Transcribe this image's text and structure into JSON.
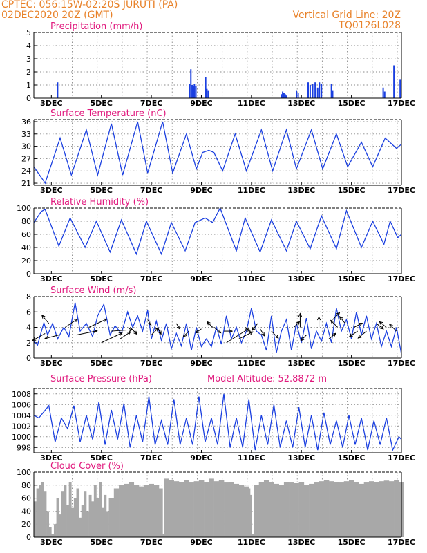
{
  "header": {
    "station": "CPTEC:   056:15W-02:20S   JURUTI (PA)",
    "datetime": "02DEC2020 20Z (GMT)",
    "grid_line": "Vertical Grid Line: 20Z",
    "code": "TQ0126L028"
  },
  "colors": {
    "header": "#e8822a",
    "title": "#e0197d",
    "series": "#1a3fe0",
    "cloud": "#a8a8a8",
    "grid": "#8a8a8a"
  },
  "chart_data": [
    {
      "id": "precip",
      "type": "bar",
      "title": "Precipitation (mm/h)",
      "xlim": [
        2.3,
        17.0
      ],
      "ylim": [
        0,
        5
      ],
      "y_ticks": [
        "0",
        "1",
        "2",
        "3",
        "4",
        "5"
      ],
      "x_ticks": [
        "3DEC",
        "5DEC",
        "7DEC",
        "9DEC",
        "11DEC",
        "13DEC",
        "15DEC",
        "17DEC"
      ],
      "x": [
        3.25,
        8.52,
        8.58,
        8.63,
        8.67,
        8.72,
        8.78,
        9.17,
        9.22,
        9.28,
        12.2,
        12.25,
        12.3,
        12.35,
        12.4,
        12.8,
        12.87,
        13.27,
        13.35,
        13.45,
        13.55,
        13.65,
        13.72,
        13.8,
        14.2,
        14.25,
        16.27,
        16.33,
        16.7,
        16.95,
        16.98
      ],
      "values": [
        1.2,
        1.1,
        2.2,
        1.0,
        0.9,
        1.1,
        0.9,
        1.6,
        0.7,
        0.6,
        0.3,
        0.5,
        0.4,
        0.3,
        0.2,
        0.6,
        0.4,
        1.2,
        1.0,
        1.1,
        1.2,
        0.8,
        1.2,
        1.1,
        1.1,
        0.6,
        0.8,
        0.5,
        2.5,
        1.4,
        0.9
      ]
    },
    {
      "id": "temp",
      "type": "line",
      "title": "Surface Temperature (nC)",
      "xlim": [
        2.3,
        17.0
      ],
      "ylim": [
        20.5,
        36.5
      ],
      "y_ticks": [
        "21",
        "24",
        "27",
        "30",
        "33",
        "36"
      ],
      "x_ticks": [
        "3DEC",
        "5DEC",
        "7DEC",
        "9DEC",
        "11DEC",
        "13DEC",
        "15DEC",
        "17DEC"
      ],
      "x": [
        2.3,
        2.7,
        2.75,
        3.35,
        3.8,
        4.4,
        4.85,
        5.4,
        5.85,
        6.45,
        6.85,
        7.45,
        7.85,
        8.4,
        8.8,
        9.05,
        9.3,
        9.5,
        9.85,
        10.35,
        10.8,
        11.4,
        11.85,
        12.4,
        12.8,
        13.4,
        13.85,
        14.4,
        14.85,
        15.4,
        15.85,
        16.35,
        16.8,
        17.0
      ],
      "values": [
        25,
        21.5,
        21,
        32,
        23,
        34,
        23,
        35.5,
        23,
        36,
        23.5,
        36,
        23.5,
        33,
        24.5,
        28.5,
        29,
        28.5,
        24,
        33,
        24,
        34,
        24,
        34,
        24.5,
        34,
        24.5,
        33,
        25,
        31,
        25,
        32,
        29.5,
        30.5
      ]
    },
    {
      "id": "rh",
      "type": "line",
      "title": "Relative Humidity (%)",
      "xlim": [
        2.3,
        17.0
      ],
      "ylim": [
        0,
        100
      ],
      "y_ticks": [
        "0",
        "20",
        "40",
        "60",
        "80",
        "100"
      ],
      "x_ticks": [
        "3DEC",
        "5DEC",
        "7DEC",
        "9DEC",
        "11DEC",
        "13DEC",
        "15DEC",
        "17DEC"
      ],
      "x": [
        2.3,
        2.6,
        2.75,
        3.3,
        3.75,
        4.35,
        4.8,
        5.35,
        5.8,
        6.4,
        6.8,
        7.4,
        7.8,
        8.35,
        8.75,
        9.15,
        9.45,
        9.75,
        10.4,
        10.75,
        11.35,
        11.8,
        12.4,
        12.8,
        13.35,
        13.8,
        14.4,
        14.8,
        15.4,
        15.85,
        16.3,
        16.55,
        16.85,
        17.0
      ],
      "values": [
        78,
        95,
        98,
        42,
        85,
        40,
        80,
        33,
        82,
        30,
        80,
        30,
        78,
        35,
        78,
        85,
        78,
        100,
        35,
        85,
        33,
        82,
        35,
        80,
        38,
        88,
        38,
        96,
        40,
        80,
        45,
        80,
        55,
        60
      ]
    },
    {
      "id": "wind",
      "type": "line",
      "title": "Surface Wind (m/s)",
      "xlim": [
        2.3,
        17.0
      ],
      "ylim": [
        0,
        8
      ],
      "y_ticks": [
        "0",
        "2",
        "4",
        "6",
        "8"
      ],
      "x_ticks": [
        "3DEC",
        "5DEC",
        "7DEC",
        "9DEC",
        "11DEC",
        "13DEC",
        "15DEC",
        "17DEC"
      ],
      "x": [
        2.3,
        2.45,
        2.7,
        2.85,
        3.05,
        3.25,
        3.5,
        3.7,
        3.95,
        4.15,
        4.4,
        4.65,
        4.85,
        5.1,
        5.35,
        5.55,
        5.8,
        6.05,
        6.25,
        6.45,
        6.65,
        6.85,
        7.0,
        7.2,
        7.4,
        7.6,
        7.8,
        8.0,
        8.2,
        8.4,
        8.6,
        8.8,
        9.0,
        9.2,
        9.4,
        9.6,
        9.8,
        10.0,
        10.2,
        10.4,
        10.6,
        10.8,
        11.0,
        11.2,
        11.4,
        11.6,
        11.8,
        12.0,
        12.2,
        12.4,
        12.6,
        12.8,
        13.0,
        13.2,
        13.4,
        13.6,
        13.8,
        14.0,
        14.2,
        14.4,
        14.6,
        14.8,
        15.0,
        15.2,
        15.4,
        15.6,
        15.8,
        16.0,
        16.2,
        16.4,
        16.6,
        16.8,
        17.0
      ],
      "values": [
        2.2,
        1.7,
        4.6,
        3.0,
        4.5,
        2.5,
        4.0,
        2.8,
        7.2,
        3.5,
        4.5,
        2.8,
        5.5,
        7.0,
        3.0,
        4.2,
        3.2,
        6.0,
        4.0,
        5.5,
        3.5,
        6.2,
        2.5,
        4.8,
        2.3,
        4.5,
        1.2,
        3.2,
        1.6,
        4.5,
        1.0,
        4.0,
        1.5,
        2.5,
        1.5,
        4.0,
        1.8,
        5.5,
        2.5,
        4.0,
        2.0,
        3.5,
        6.5,
        3.5,
        3.0,
        1.0,
        5.5,
        0.7,
        3.5,
        5.0,
        1.0,
        4.5,
        2.0,
        5.2,
        1.2,
        3.5,
        2.2,
        4.5,
        2.0,
        6.5,
        3.5,
        5.0,
        2.5,
        6.0,
        3.0,
        5.5,
        2.5,
        4.5,
        1.5,
        3.5,
        1.5,
        4.0,
        0.5
      ]
    },
    {
      "id": "pressure",
      "type": "line",
      "title": "Surface Pressure (hPa)",
      "annotation": "Model Altitude: 52.8872 m",
      "xlim": [
        2.3,
        17.0
      ],
      "ylim": [
        997,
        1009
      ],
      "y_ticks": [
        "998",
        "1000",
        "1002",
        "1004",
        "1006",
        "1008"
      ],
      "x_ticks": [
        "3DEC",
        "5DEC",
        "7DEC",
        "9DEC",
        "11DEC",
        "13DEC",
        "15DEC",
        "17DEC"
      ],
      "x": [
        2.3,
        2.5,
        2.9,
        3.15,
        3.4,
        3.65,
        3.9,
        4.15,
        4.4,
        4.65,
        4.9,
        5.15,
        5.4,
        5.65,
        5.9,
        6.15,
        6.4,
        6.65,
        6.9,
        7.15,
        7.4,
        7.65,
        7.9,
        8.15,
        8.4,
        8.65,
        8.9,
        9.15,
        9.4,
        9.65,
        9.9,
        10.15,
        10.4,
        10.65,
        10.9,
        11.15,
        11.4,
        11.65,
        11.9,
        12.15,
        12.4,
        12.65,
        12.9,
        13.15,
        13.4,
        13.65,
        13.9,
        14.15,
        14.4,
        14.65,
        14.9,
        15.15,
        15.4,
        15.65,
        15.9,
        16.15,
        16.4,
        16.65,
        16.9,
        17.0
      ],
      "values": [
        1004.0,
        1003.5,
        1005.8,
        999.0,
        1003.5,
        1001.5,
        1005.8,
        999.0,
        1004.0,
        999.5,
        1006.5,
        998.5,
        1005.0,
        999.5,
        1006.2,
        998.0,
        1004.0,
        999.0,
        1007.5,
        998.5,
        1003.0,
        998.5,
        1007.0,
        998.5,
        1003.5,
        998.5,
        1007.5,
        999.0,
        1003.5,
        998.5,
        1008.0,
        998.0,
        1003.5,
        998.0,
        1007.0,
        997.5,
        1004.0,
        998.5,
        1006.0,
        998.0,
        1003.0,
        998.0,
        1005.5,
        998.0,
        1004.0,
        997.5,
        1004.5,
        998.5,
        1003.0,
        998.0,
        1004.0,
        998.5,
        1003.5,
        997.5,
        1003.0,
        998.5,
        1003.5,
        997.5,
        1000.0,
        999.5
      ]
    },
    {
      "id": "cloud",
      "type": "area",
      "title": "Cloud Cover (%)",
      "xlim": [
        2.3,
        17.0
      ],
      "ylim": [
        0,
        100
      ],
      "y_ticks": [
        "0",
        "20",
        "40",
        "60",
        "80",
        "100"
      ],
      "x_ticks": [
        "3DEC",
        "5DEC",
        "7DEC",
        "9DEC",
        "11DEC",
        "13DEC",
        "15DEC",
        "17DEC"
      ],
      "x": [
        2.3,
        2.4,
        2.5,
        2.6,
        2.7,
        2.8,
        2.9,
        3.0,
        3.1,
        3.2,
        3.3,
        3.4,
        3.5,
        3.6,
        3.7,
        3.8,
        3.9,
        4.0,
        4.1,
        4.2,
        4.3,
        4.4,
        4.5,
        4.6,
        4.7,
        4.8,
        4.9,
        5.0,
        5.1,
        5.2,
        5.3,
        5.5,
        5.7,
        5.9,
        6.1,
        6.3,
        6.5,
        6.7,
        6.9,
        7.1,
        7.3,
        7.45,
        7.5,
        7.7,
        7.9,
        8.1,
        8.3,
        8.5,
        8.7,
        8.9,
        9.1,
        9.3,
        9.5,
        9.7,
        9.9,
        10.1,
        10.3,
        10.5,
        10.7,
        10.9,
        10.95,
        11.0,
        11.1,
        11.3,
        11.5,
        11.7,
        11.9,
        12.1,
        12.3,
        12.5,
        12.7,
        12.9,
        13.1,
        13.3,
        13.5,
        13.7,
        13.9,
        14.1,
        14.3,
        14.5,
        14.7,
        14.9,
        15.1,
        15.3,
        15.5,
        15.7,
        15.9,
        16.1,
        16.3,
        16.5,
        16.7,
        16.9,
        17.0
      ],
      "values": [
        55,
        75,
        80,
        85,
        70,
        40,
        15,
        5,
        20,
        60,
        35,
        70,
        80,
        50,
        85,
        45,
        60,
        75,
        30,
        50,
        70,
        40,
        65,
        55,
        80,
        60,
        85,
        45,
        65,
        40,
        60,
        75,
        80,
        82,
        85,
        80,
        78,
        80,
        82,
        80,
        75,
        5,
        90,
        88,
        86,
        85,
        88,
        84,
        86,
        88,
        85,
        90,
        86,
        88,
        84,
        85,
        82,
        80,
        78,
        75,
        65,
        5,
        80,
        85,
        88,
        85,
        82,
        80,
        85,
        84,
        83,
        85,
        80,
        82,
        84,
        86,
        88,
        86,
        85,
        84,
        86,
        88,
        85,
        82,
        84,
        86,
        85,
        86,
        87,
        86,
        88,
        85,
        85
      ]
    }
  ],
  "wind_arrows": [
    {
      "x": 2.75,
      "y": 3.2,
      "dx": -18,
      "dy": 10
    },
    {
      "x": 2.9,
      "y": 4.5,
      "dx": -10,
      "dy": -12
    },
    {
      "x": 3.3,
      "y": 3.0,
      "dx": -20,
      "dy": 5
    },
    {
      "x": 3.55,
      "y": 4.0,
      "dx": 18,
      "dy": -12
    },
    {
      "x": 4.0,
      "y": 3.0,
      "dx": 30,
      "dy": -6
    },
    {
      "x": 4.5,
      "y": 4.0,
      "dx": 26,
      "dy": -12
    },
    {
      "x": 5.0,
      "y": 2.0,
      "dx": 30,
      "dy": -14
    },
    {
      "x": 5.4,
      "y": 3.5,
      "dx": 30,
      "dy": -2
    },
    {
      "x": 5.75,
      "y": 2.5,
      "dx": 15,
      "dy": -10
    },
    {
      "x": 6.15,
      "y": 4.0,
      "dx": 10,
      "dy": 10
    },
    {
      "x": 6.85,
      "y": 5.0,
      "dx": 5,
      "dy": 8
    },
    {
      "x": 7.0,
      "y": 3.0,
      "dx": 10,
      "dy": -10
    },
    {
      "x": 7.25,
      "y": 4.0,
      "dx": 5,
      "dy": 10
    },
    {
      "x": 8.0,
      "y": 4.5,
      "dx": 5,
      "dy": 8
    },
    {
      "x": 8.5,
      "y": 3.5,
      "dx": -8,
      "dy": 8
    },
    {
      "x": 9.0,
      "y": 3.8,
      "dx": -8,
      "dy": 6
    },
    {
      "x": 9.45,
      "y": 4.0,
      "dx": -8,
      "dy": -8
    },
    {
      "x": 9.5,
      "y": 4.0,
      "dx": 10,
      "dy": 8
    },
    {
      "x": 9.9,
      "y": 3.5,
      "dx": 12,
      "dy": 0
    },
    {
      "x": 10.0,
      "y": 2.0,
      "dx": 32,
      "dy": -20
    },
    {
      "x": 10.5,
      "y": 2.5,
      "dx": 20,
      "dy": -10
    },
    {
      "x": 10.75,
      "y": 4.0,
      "dx": 8,
      "dy": 8
    },
    {
      "x": 11.25,
      "y": 4.5,
      "dx": -8,
      "dy": 10
    },
    {
      "x": 11.35,
      "y": 3.8,
      "dx": 6,
      "dy": 10
    },
    {
      "x": 11.8,
      "y": 3.5,
      "dx": 10,
      "dy": 10
    },
    {
      "x": 12.7,
      "y": 4.0,
      "dx": 8,
      "dy": -8
    },
    {
      "x": 12.95,
      "y": 4.0,
      "dx": 0,
      "dy": -20
    },
    {
      "x": 13.2,
      "y": 3.0,
      "dx": -8,
      "dy": 8
    },
    {
      "x": 13.7,
      "y": 4.0,
      "dx": 0,
      "dy": -15
    },
    {
      "x": 14.1,
      "y": 2.5,
      "dx": 10,
      "dy": -8
    },
    {
      "x": 14.25,
      "y": 5.0,
      "dx": 10,
      "dy": -10
    },
    {
      "x": 14.45,
      "y": 4.0,
      "dx": -10,
      "dy": -10
    },
    {
      "x": 14.75,
      "y": 4.5,
      "dx": -8,
      "dy": -10
    },
    {
      "x": 15.1,
      "y": 4.0,
      "dx": 12,
      "dy": -6
    },
    {
      "x": 15.25,
      "y": 3.5,
      "dx": -12,
      "dy": 8
    },
    {
      "x": 15.6,
      "y": 3.5,
      "dx": -12,
      "dy": 10
    },
    {
      "x": 16.0,
      "y": 4.5,
      "dx": 10,
      "dy": 8
    },
    {
      "x": 16.4,
      "y": 4.0,
      "dx": -10,
      "dy": -8
    },
    {
      "x": 16.8,
      "y": 3.5,
      "dx": -10,
      "dy": -10
    }
  ]
}
